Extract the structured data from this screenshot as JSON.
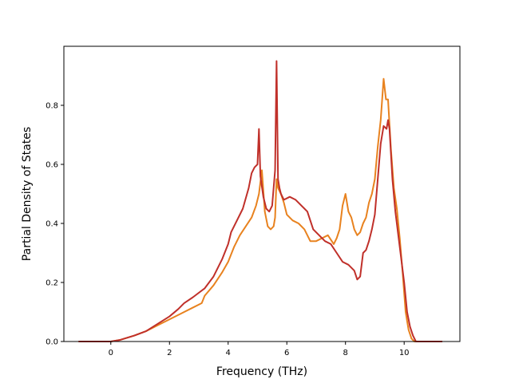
{
  "chart_data": {
    "type": "line",
    "title": "",
    "xlabel": "Frequency (THz)",
    "ylabel": "Partial Density of States",
    "xlim": [
      -1.6,
      11.9
    ],
    "ylim": [
      0.0,
      1.0
    ],
    "x_ticks": [
      "0",
      "2",
      "4",
      "6",
      "8",
      "10"
    ],
    "y_ticks": [
      "0.0",
      "0.2",
      "0.4",
      "0.6",
      "0.8"
    ],
    "grid": false,
    "legend": "none",
    "series": [
      {
        "color": "#e8821f",
        "x": [
          -1.1,
          0.0,
          0.3,
          0.8,
          1.2,
          1.6,
          2.0,
          2.4,
          2.8,
          3.1,
          3.2,
          3.5,
          3.8,
          4.0,
          4.2,
          4.4,
          4.6,
          4.8,
          4.95,
          5.05,
          5.15,
          5.25,
          5.35,
          5.45,
          5.55,
          5.6,
          5.65,
          5.7,
          5.8,
          5.9,
          6.0,
          6.2,
          6.4,
          6.6,
          6.8,
          7.0,
          7.2,
          7.4,
          7.6,
          7.7,
          7.8,
          7.9,
          8.0,
          8.1,
          8.2,
          8.3,
          8.4,
          8.5,
          8.6,
          8.7,
          8.8,
          8.9,
          9.0,
          9.1,
          9.2,
          9.3,
          9.38,
          9.45,
          9.55,
          9.65,
          9.75,
          9.85,
          9.95,
          10.05,
          10.15,
          10.25,
          10.35,
          11.3
        ],
        "y": [
          0.0,
          0.0,
          0.005,
          0.02,
          0.035,
          0.055,
          0.075,
          0.095,
          0.115,
          0.13,
          0.155,
          0.19,
          0.235,
          0.27,
          0.32,
          0.36,
          0.39,
          0.42,
          0.46,
          0.5,
          0.58,
          0.44,
          0.39,
          0.38,
          0.39,
          0.42,
          0.55,
          0.52,
          0.5,
          0.47,
          0.43,
          0.41,
          0.4,
          0.38,
          0.34,
          0.34,
          0.35,
          0.36,
          0.33,
          0.35,
          0.38,
          0.46,
          0.5,
          0.44,
          0.42,
          0.38,
          0.36,
          0.37,
          0.4,
          0.42,
          0.47,
          0.5,
          0.55,
          0.66,
          0.75,
          0.89,
          0.82,
          0.82,
          0.65,
          0.52,
          0.45,
          0.35,
          0.23,
          0.1,
          0.04,
          0.01,
          0.0,
          0.0
        ]
      },
      {
        "color": "#c0302a",
        "x": [
          -1.1,
          0.0,
          0.3,
          0.8,
          1.2,
          1.6,
          2.0,
          2.3,
          2.5,
          2.8,
          3.2,
          3.5,
          3.8,
          4.0,
          4.1,
          4.3,
          4.5,
          4.7,
          4.8,
          4.9,
          5.0,
          5.05,
          5.1,
          5.2,
          5.3,
          5.4,
          5.5,
          5.6,
          5.65,
          5.7,
          5.75,
          5.8,
          5.9,
          6.1,
          6.3,
          6.5,
          6.7,
          6.9,
          7.1,
          7.3,
          7.5,
          7.7,
          7.9,
          8.1,
          8.3,
          8.4,
          8.5,
          8.6,
          8.7,
          8.8,
          8.9,
          9.0,
          9.1,
          9.2,
          9.3,
          9.4,
          9.45,
          9.5,
          9.6,
          9.7,
          9.8,
          9.9,
          10.0,
          10.1,
          10.2,
          10.3,
          10.4,
          11.3
        ],
        "y": [
          0.0,
          0.0,
          0.005,
          0.02,
          0.035,
          0.06,
          0.085,
          0.11,
          0.13,
          0.15,
          0.18,
          0.22,
          0.28,
          0.33,
          0.37,
          0.41,
          0.45,
          0.52,
          0.57,
          0.59,
          0.6,
          0.72,
          0.56,
          0.49,
          0.45,
          0.44,
          0.46,
          0.58,
          0.95,
          0.55,
          0.52,
          0.5,
          0.48,
          0.49,
          0.48,
          0.46,
          0.44,
          0.38,
          0.36,
          0.34,
          0.33,
          0.3,
          0.27,
          0.26,
          0.24,
          0.21,
          0.22,
          0.3,
          0.31,
          0.34,
          0.38,
          0.43,
          0.55,
          0.67,
          0.73,
          0.72,
          0.75,
          0.72,
          0.55,
          0.44,
          0.36,
          0.28,
          0.2,
          0.1,
          0.05,
          0.02,
          0.0,
          0.0
        ]
      }
    ]
  }
}
